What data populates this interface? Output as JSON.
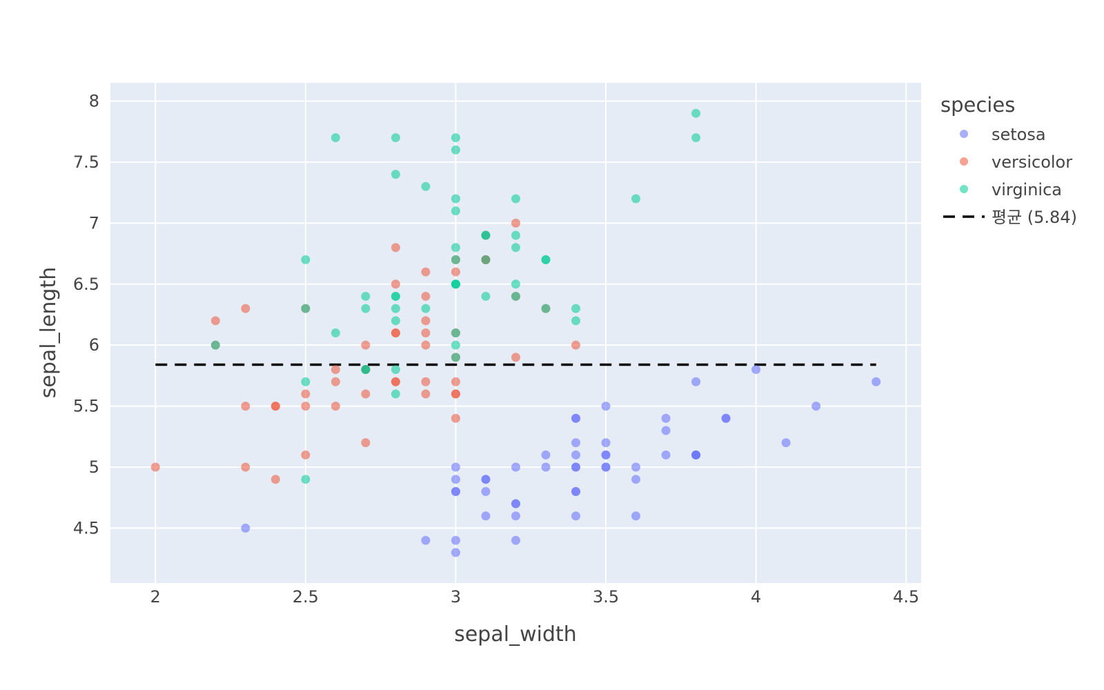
{
  "chart_data": {
    "type": "scatter",
    "xlabel": "sepal_width",
    "ylabel": "sepal_length",
    "xlim": [
      1.85,
      4.55
    ],
    "ylim": [
      4.05,
      8.15
    ],
    "x_ticks": [
      2,
      2.5,
      3,
      3.5,
      4,
      4.5
    ],
    "x_tick_labels": [
      "2",
      "2.5",
      "3",
      "3.5",
      "4",
      "4.5"
    ],
    "y_ticks": [
      4.5,
      5,
      5.5,
      6,
      6.5,
      7,
      7.5,
      8
    ],
    "y_tick_labels": [
      "4.5",
      "5",
      "5.5",
      "6",
      "6.5",
      "7",
      "7.5",
      "8"
    ],
    "grid": true,
    "legend_title": "species",
    "legend_position": "right",
    "series": [
      {
        "name": "setosa",
        "color": "#636efa",
        "points": [
          [
            3.5,
            5.1
          ],
          [
            3.0,
            4.9
          ],
          [
            3.2,
            4.7
          ],
          [
            3.1,
            4.6
          ],
          [
            3.6,
            5.0
          ],
          [
            3.9,
            5.4
          ],
          [
            3.4,
            4.6
          ],
          [
            3.4,
            5.0
          ],
          [
            2.9,
            4.4
          ],
          [
            3.1,
            4.9
          ],
          [
            3.7,
            5.4
          ],
          [
            3.4,
            4.8
          ],
          [
            3.0,
            4.8
          ],
          [
            3.0,
            4.3
          ],
          [
            4.0,
            5.8
          ],
          [
            4.4,
            5.7
          ],
          [
            3.9,
            5.4
          ],
          [
            3.5,
            5.1
          ],
          [
            3.8,
            5.7
          ],
          [
            3.8,
            5.1
          ],
          [
            3.4,
            5.4
          ],
          [
            3.7,
            5.1
          ],
          [
            3.6,
            4.6
          ],
          [
            3.3,
            5.1
          ],
          [
            3.4,
            4.8
          ],
          [
            3.0,
            5.0
          ],
          [
            3.4,
            5.0
          ],
          [
            3.5,
            5.2
          ],
          [
            3.4,
            5.2
          ],
          [
            3.2,
            4.7
          ],
          [
            3.1,
            4.8
          ],
          [
            3.4,
            5.4
          ],
          [
            4.1,
            5.2
          ],
          [
            4.2,
            5.5
          ],
          [
            3.1,
            4.9
          ],
          [
            3.2,
            5.0
          ],
          [
            3.5,
            5.5
          ],
          [
            3.6,
            4.9
          ],
          [
            3.0,
            4.4
          ],
          [
            3.4,
            5.1
          ],
          [
            3.5,
            5.0
          ],
          [
            2.3,
            4.5
          ],
          [
            3.2,
            4.4
          ],
          [
            3.5,
            5.0
          ],
          [
            3.8,
            5.1
          ],
          [
            3.0,
            4.8
          ],
          [
            3.8,
            5.1
          ],
          [
            3.2,
            4.6
          ],
          [
            3.7,
            5.3
          ],
          [
            3.3,
            5.0
          ]
        ]
      },
      {
        "name": "versicolor",
        "color": "#ef553b",
        "points": [
          [
            3.2,
            7.0
          ],
          [
            3.2,
            6.4
          ],
          [
            3.1,
            6.9
          ],
          [
            2.3,
            5.5
          ],
          [
            2.8,
            6.5
          ],
          [
            2.8,
            5.7
          ],
          [
            3.3,
            6.3
          ],
          [
            2.4,
            4.9
          ],
          [
            2.9,
            6.6
          ],
          [
            2.7,
            5.2
          ],
          [
            2.0,
            5.0
          ],
          [
            3.0,
            5.9
          ],
          [
            2.2,
            6.0
          ],
          [
            2.9,
            6.1
          ],
          [
            2.9,
            5.6
          ],
          [
            3.1,
            6.7
          ],
          [
            3.0,
            5.6
          ],
          [
            2.7,
            5.8
          ],
          [
            2.2,
            6.2
          ],
          [
            2.5,
            5.6
          ],
          [
            3.2,
            5.9
          ],
          [
            2.8,
            6.1
          ],
          [
            2.5,
            6.3
          ],
          [
            2.8,
            6.1
          ],
          [
            2.9,
            6.4
          ],
          [
            3.0,
            6.6
          ],
          [
            2.8,
            6.8
          ],
          [
            3.0,
            6.7
          ],
          [
            2.9,
            6.0
          ],
          [
            2.6,
            5.7
          ],
          [
            2.4,
            5.5
          ],
          [
            2.4,
            5.5
          ],
          [
            2.7,
            5.8
          ],
          [
            2.7,
            6.0
          ],
          [
            3.0,
            5.4
          ],
          [
            3.4,
            6.0
          ],
          [
            3.1,
            6.7
          ],
          [
            2.3,
            6.3
          ],
          [
            3.0,
            5.6
          ],
          [
            2.5,
            5.5
          ],
          [
            2.6,
            5.5
          ],
          [
            3.0,
            6.1
          ],
          [
            2.6,
            5.8
          ],
          [
            2.3,
            5.0
          ],
          [
            2.7,
            5.6
          ],
          [
            3.0,
            5.7
          ],
          [
            2.9,
            5.7
          ],
          [
            2.9,
            6.2
          ],
          [
            2.5,
            5.1
          ],
          [
            2.8,
            5.7
          ]
        ]
      },
      {
        "name": "virginica",
        "color": "#00cc96",
        "points": [
          [
            3.3,
            6.3
          ],
          [
            2.7,
            5.8
          ],
          [
            3.0,
            7.1
          ],
          [
            2.9,
            6.3
          ],
          [
            3.0,
            6.5
          ],
          [
            3.0,
            7.6
          ],
          [
            2.5,
            4.9
          ],
          [
            2.9,
            7.3
          ],
          [
            2.5,
            6.7
          ],
          [
            3.6,
            7.2
          ],
          [
            3.2,
            6.5
          ],
          [
            2.7,
            6.4
          ],
          [
            3.0,
            6.8
          ],
          [
            2.5,
            5.7
          ],
          [
            2.8,
            5.8
          ],
          [
            3.2,
            6.4
          ],
          [
            3.0,
            6.5
          ],
          [
            3.8,
            7.7
          ],
          [
            2.6,
            7.7
          ],
          [
            2.2,
            6.0
          ],
          [
            3.2,
            6.9
          ],
          [
            2.8,
            5.6
          ],
          [
            2.8,
            7.7
          ],
          [
            2.7,
            6.3
          ],
          [
            3.3,
            6.7
          ],
          [
            3.2,
            7.2
          ],
          [
            2.8,
            6.2
          ],
          [
            3.0,
            6.1
          ],
          [
            2.8,
            6.4
          ],
          [
            3.0,
            7.2
          ],
          [
            2.8,
            7.4
          ],
          [
            3.8,
            7.9
          ],
          [
            2.8,
            6.4
          ],
          [
            2.8,
            6.3
          ],
          [
            2.6,
            6.1
          ],
          [
            3.0,
            7.7
          ],
          [
            3.4,
            6.3
          ],
          [
            3.1,
            6.4
          ],
          [
            3.0,
            6.0
          ],
          [
            3.1,
            6.9
          ],
          [
            3.1,
            6.7
          ],
          [
            3.1,
            6.9
          ],
          [
            2.7,
            5.8
          ],
          [
            3.2,
            6.8
          ],
          [
            3.3,
            6.7
          ],
          [
            3.0,
            6.7
          ],
          [
            2.5,
            6.3
          ],
          [
            3.0,
            6.5
          ],
          [
            3.4,
            6.2
          ],
          [
            3.0,
            5.9
          ]
        ]
      }
    ],
    "reference_line": {
      "name": "평균 (5.84)",
      "y": 5.84,
      "x_range": [
        2.0,
        4.4
      ],
      "color": "#000000",
      "style": "dashed"
    }
  }
}
